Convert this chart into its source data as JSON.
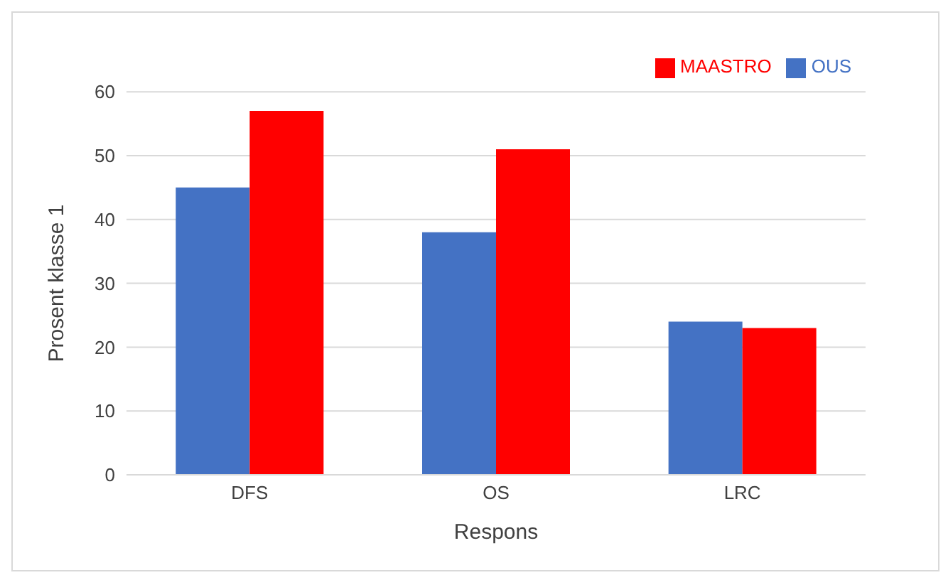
{
  "chart_data": {
    "type": "bar",
    "xlabel": "Respons",
    "ylabel": "Prosent klasse 1",
    "categories": [
      "DFS",
      "OS",
      "LRC"
    ],
    "series": [
      {
        "name": "OUS",
        "color": "#4472c4",
        "values": [
          45,
          38,
          24
        ]
      },
      {
        "name": "MAASTRO",
        "color": "#ff0000",
        "values": [
          57,
          51,
          23
        ]
      }
    ],
    "ylim": [
      0,
      60
    ],
    "yticks": [
      0,
      10,
      20,
      30,
      40,
      50,
      60
    ],
    "grid": "y",
    "legend": "top right"
  }
}
